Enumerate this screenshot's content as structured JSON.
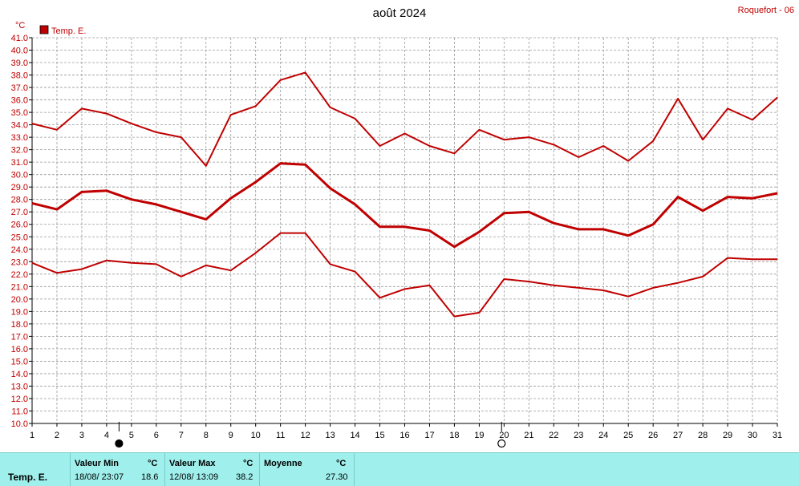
{
  "station": "Roquefort - 06",
  "chart_data": {
    "type": "line",
    "title": "août 2024",
    "ylabel": "°C",
    "ylim": [
      10.0,
      41.0
    ],
    "y_step": 1.0,
    "xlim": [
      1,
      31
    ],
    "x": [
      1,
      2,
      3,
      4,
      5,
      6,
      7,
      8,
      9,
      10,
      11,
      12,
      13,
      14,
      15,
      16,
      17,
      18,
      19,
      20,
      21,
      22,
      23,
      24,
      25,
      26,
      27,
      28,
      29,
      30,
      31
    ],
    "grid": true,
    "legend_position": "top-left",
    "legend": [
      {
        "name": "Temp. E.",
        "color": "#c00000"
      }
    ],
    "series": [
      {
        "role": "max",
        "color": "#c00000",
        "values": [
          34.1,
          33.6,
          35.3,
          34.9,
          34.1,
          33.4,
          33.0,
          30.7,
          34.8,
          35.5,
          37.6,
          38.2,
          35.4,
          34.5,
          32.3,
          33.3,
          32.3,
          31.7,
          33.6,
          32.8,
          33.0,
          32.4,
          31.4,
          32.3,
          31.1,
          32.7,
          36.1,
          32.8,
          35.3,
          34.4,
          36.2
        ]
      },
      {
        "role": "mean",
        "color": "#c00000",
        "values": [
          27.7,
          27.2,
          28.6,
          28.7,
          28.0,
          27.6,
          27.0,
          26.4,
          28.1,
          29.4,
          30.9,
          30.8,
          28.9,
          27.6,
          25.8,
          25.8,
          25.5,
          24.2,
          25.4,
          26.9,
          27.0,
          26.1,
          25.6,
          25.6,
          25.1,
          26.0,
          28.2,
          27.1,
          28.2,
          28.1,
          28.5
        ]
      },
      {
        "role": "min",
        "color": "#c00000",
        "values": [
          22.9,
          22.1,
          22.4,
          23.1,
          22.9,
          22.8,
          21.8,
          22.7,
          22.3,
          23.7,
          25.3,
          25.3,
          22.8,
          22.2,
          20.1,
          20.8,
          21.1,
          18.6,
          18.9,
          21.6,
          21.4,
          21.1,
          20.9,
          20.7,
          20.2,
          20.9,
          21.3,
          21.8,
          23.3,
          23.2,
          23.2
        ]
      }
    ],
    "moon_phases": [
      {
        "day": 4.5,
        "phase": "new-moon"
      },
      {
        "day": 19.9,
        "phase": "full-moon"
      }
    ]
  },
  "summary": {
    "series_name": "Temp. E.",
    "min": {
      "header": "Valeur Min",
      "unit": "°C",
      "date": "18/08/ 23:07",
      "value": "18.6"
    },
    "max": {
      "header": "Valeur Max",
      "unit": "°C",
      "date": "12/08/ 13:09",
      "value": "38.2"
    },
    "mean": {
      "header": "Moyenne",
      "unit": "°C",
      "value": "27.30"
    }
  }
}
